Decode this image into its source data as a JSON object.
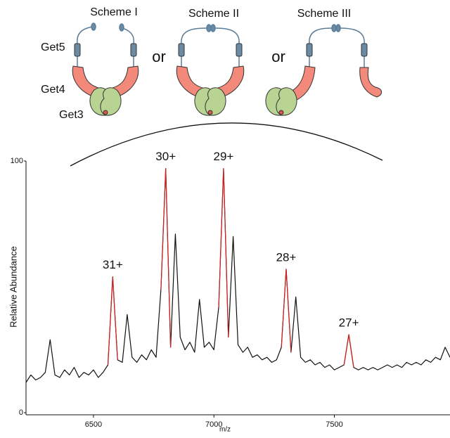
{
  "diagram": {
    "schemes": [
      "Scheme I",
      "Scheme II",
      "Scheme III"
    ],
    "labels": [
      "Get5",
      "Get4",
      "Get3"
    ],
    "connector": "or"
  },
  "chart_data": {
    "type": "line",
    "xlabel": "m/z",
    "ylabel": "Relative Abundance",
    "xlim": [
      6220,
      7980
    ],
    "ylim": [
      0,
      100
    ],
    "xticks": [
      6500,
      7000,
      7500
    ],
    "yticks": [
      0,
      100
    ],
    "x": [
      6220,
      6240,
      6260,
      6280,
      6300,
      6320,
      6340,
      6360,
      6380,
      6400,
      6420,
      6440,
      6460,
      6480,
      6500,
      6520,
      6540,
      6560,
      6580,
      6600,
      6620,
      6640,
      6660,
      6680,
      6700,
      6720,
      6740,
      6760,
      6780,
      6800,
      6820,
      6840,
      6860,
      6880,
      6900,
      6920,
      6940,
      6960,
      6980,
      7000,
      7020,
      7040,
      7060,
      7080,
      7100,
      7120,
      7140,
      7160,
      7180,
      7200,
      7220,
      7240,
      7260,
      7280,
      7300,
      7320,
      7340,
      7360,
      7380,
      7400,
      7420,
      7440,
      7460,
      7480,
      7500,
      7520,
      7540,
      7560,
      7580,
      7600,
      7620,
      7640,
      7660,
      7680,
      7700,
      7720,
      7740,
      7760,
      7780,
      7800,
      7820,
      7840,
      7860,
      7880,
      7900,
      7920,
      7940,
      7960,
      7980
    ],
    "series": [
      {
        "color": "#111111",
        "values": [
          12,
          15,
          13,
          14,
          16,
          29,
          15,
          14,
          17,
          15,
          18,
          14,
          16,
          15,
          17,
          14,
          16,
          19,
          54,
          21,
          20,
          39,
          22,
          20,
          23,
          21,
          25,
          22,
          49,
          97,
          26,
          71,
          30,
          25,
          28,
          24,
          45,
          26,
          28,
          25,
          42,
          97,
          30,
          70,
          27,
          24,
          26,
          22,
          23,
          21,
          22,
          20,
          21,
          26,
          57,
          24,
          46,
          22,
          20,
          21,
          19,
          20,
          18,
          19,
          17,
          18,
          19,
          31,
          18,
          17,
          18,
          17,
          18,
          17,
          18,
          19,
          18,
          19,
          18,
          20,
          19,
          20,
          19,
          21,
          20,
          22,
          21,
          26,
          22
        ]
      },
      {
        "color": "#d62020",
        "values": [
          null,
          null,
          null,
          null,
          null,
          null,
          null,
          null,
          null,
          null,
          null,
          null,
          null,
          null,
          null,
          null,
          null,
          19,
          54,
          21,
          null,
          null,
          null,
          null,
          null,
          null,
          null,
          null,
          49,
          97,
          26,
          null,
          null,
          null,
          null,
          null,
          null,
          null,
          null,
          null,
          42,
          97,
          30,
          null,
          null,
          null,
          null,
          null,
          null,
          null,
          null,
          null,
          null,
          26,
          57,
          24,
          null,
          null,
          null,
          null,
          null,
          null,
          null,
          null,
          null,
          null,
          19,
          31,
          18,
          null,
          null,
          null,
          null,
          null,
          null,
          null,
          null,
          null,
          null,
          null,
          null,
          null,
          null,
          null,
          null,
          null,
          null,
          null,
          null
        ]
      }
    ],
    "annotations": [
      "31+",
      "30+",
      "29+",
      "28+",
      "27+"
    ]
  }
}
